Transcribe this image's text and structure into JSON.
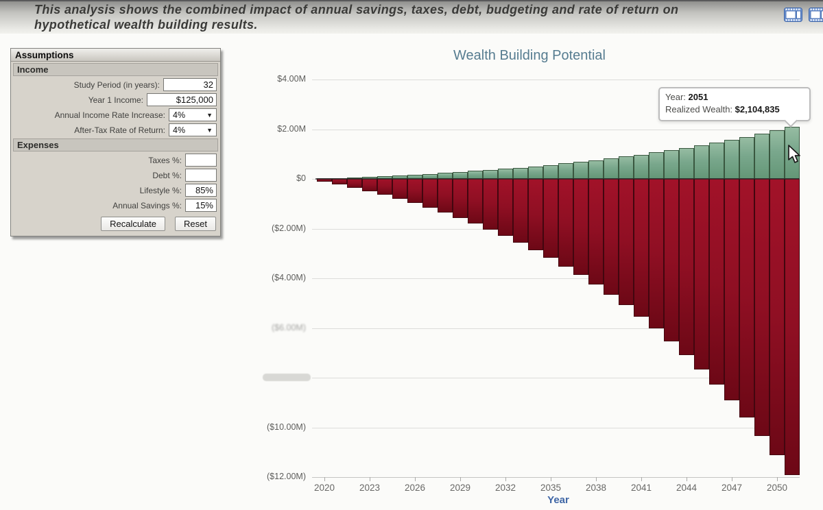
{
  "header": {
    "description": "This analysis shows the combined impact of annual savings, taxes, debt, budgeting and rate of return on hypothetical wealth building results.",
    "icon_color": "#5b7fc0"
  },
  "assumptions": {
    "title": "Assumptions",
    "income": {
      "title": "Income",
      "study_period": {
        "label": "Study Period (in years):",
        "value": "32"
      },
      "year1_income": {
        "label": "Year 1 Income:",
        "value": "$125,000"
      },
      "income_rate": {
        "label": "Annual Income Rate Increase:",
        "value": "4%"
      },
      "return_rate": {
        "label": "After-Tax Rate of Return:",
        "value": "4%"
      }
    },
    "expenses": {
      "title": "Expenses",
      "taxes": {
        "label": "Taxes %:",
        "value": ""
      },
      "debt": {
        "label": "Debt %:",
        "value": ""
      },
      "lifestyle": {
        "label": "Lifestyle %:",
        "value": "85%"
      },
      "savings": {
        "label": "Annual Savings %:",
        "value": "15%"
      }
    },
    "recalculate_label": "Recalculate",
    "reset_label": "Reset"
  },
  "tooltip": {
    "year_label": "Year:",
    "year_value": "2051",
    "wealth_label": "Realized Wealth:",
    "wealth_value": "$2,104,835"
  },
  "chart_data": {
    "type": "bar",
    "title": "Wealth Building Potential",
    "xlabel": "Year",
    "ylabel": "",
    "ylim": [
      -12000000,
      4000000
    ],
    "grid": true,
    "legend": "none",
    "x_tick_years": [
      2020,
      2023,
      2026,
      2029,
      2032,
      2035,
      2038,
      2041,
      2044,
      2047,
      2050
    ],
    "y_tick_values": [
      4000000,
      2000000,
      0,
      -2000000,
      -4000000,
      -6000000,
      -8000000,
      -10000000,
      -12000000
    ],
    "y_tick_labels": [
      "$4.00M",
      "$2.00M",
      "$0",
      "($2.00M)",
      "($4.00M)",
      "($6.00M)",
      "",
      "($10.00M)",
      "($12.00M)"
    ],
    "y_label_blurry_index": 5,
    "years": [
      2020,
      2021,
      2022,
      2023,
      2024,
      2025,
      2026,
      2027,
      2028,
      2029,
      2030,
      2031,
      2032,
      2033,
      2034,
      2035,
      2036,
      2037,
      2038,
      2039,
      2040,
      2041,
      2042,
      2043,
      2044,
      2045,
      2046,
      2047,
      2048,
      2049,
      2050,
      2051
    ],
    "hovered_year": 2051,
    "series": [
      {
        "name": "Realized Wealth",
        "color": "#79a78c",
        "values": [
          19500,
          40560,
          63274,
          87739,
          114061,
          142348,
          172716,
          205285,
          240184,
          277546,
          317512,
          360232,
          405862,
          454565,
          506515,
          561894,
          620893,
          683713,
          750565,
          821671,
          897265,
          977591,
          1062909,
          1153487,
          1249611,
          1351579,
          1459705,
          1574319,
          1695767,
          1824411,
          1960634,
          2104835
        ]
      },
      {
        "name": "",
        "color": "#8f0f23",
        "values": [
          -110500,
          -229840,
          -358550,
          -497190,
          -646347,
          -806641,
          -978724,
          -1163283,
          -1361042,
          -1572760,
          -1799237,
          -2041316,
          -2299883,
          -2575869,
          -2870254,
          -3184068,
          -3518394,
          -3874374,
          -4253202,
          -4656137,
          -5084501,
          -5539685,
          -6023149,
          -6536426,
          -7081128,
          -7658948,
          -8271663,
          -8921142,
          -9609345,
          -10338330,
          -11110258,
          -11927398
        ]
      }
    ]
  }
}
